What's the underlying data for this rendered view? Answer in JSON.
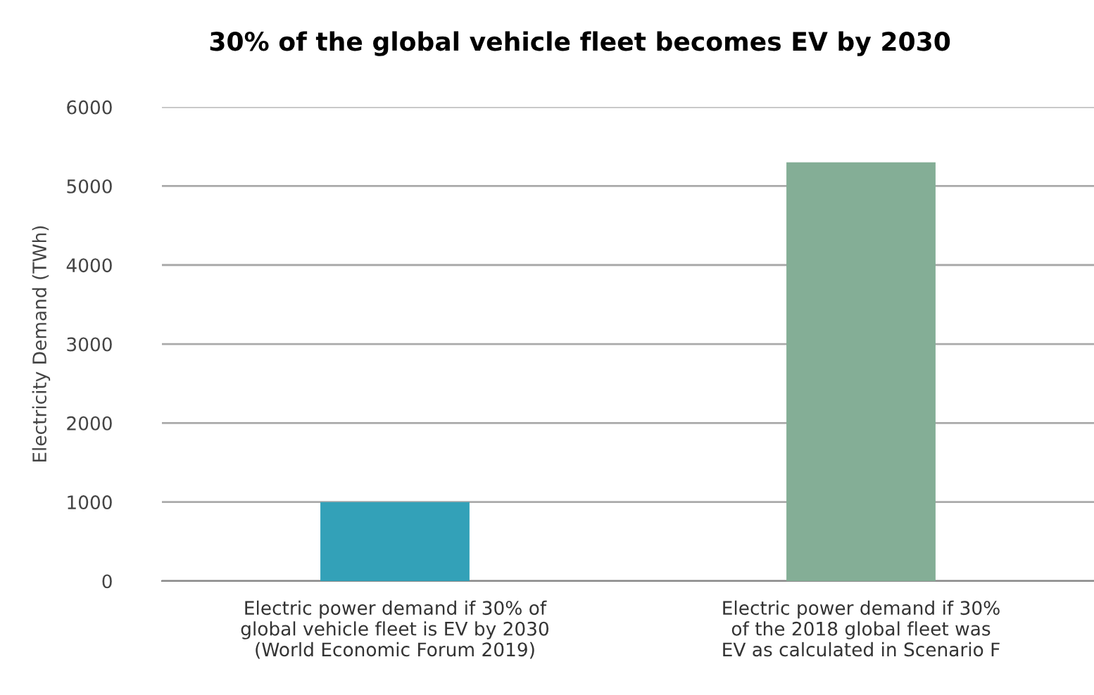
{
  "chart_data": {
    "type": "bar",
    "title": "30% of the global vehicle fleet becomes EV by 2030",
    "ylabel": "Electricity Demand (TWh)",
    "categories": [
      "Electric power demand if 30% of\nglobal vehicle fleet is EV by 2030\n(World Economic Forum 2019)",
      "Electric power demand if 30%\nof the 2018 global fleet was\nEV as calculated in Scenario F"
    ],
    "values": [
      1000,
      5300
    ],
    "colors": [
      "#33a1b8",
      "#84ae96"
    ],
    "ylim": [
      0,
      6000
    ],
    "yticks": [
      0,
      1000,
      2000,
      3000,
      4000,
      5000,
      6000
    ],
    "grid": "y"
  }
}
